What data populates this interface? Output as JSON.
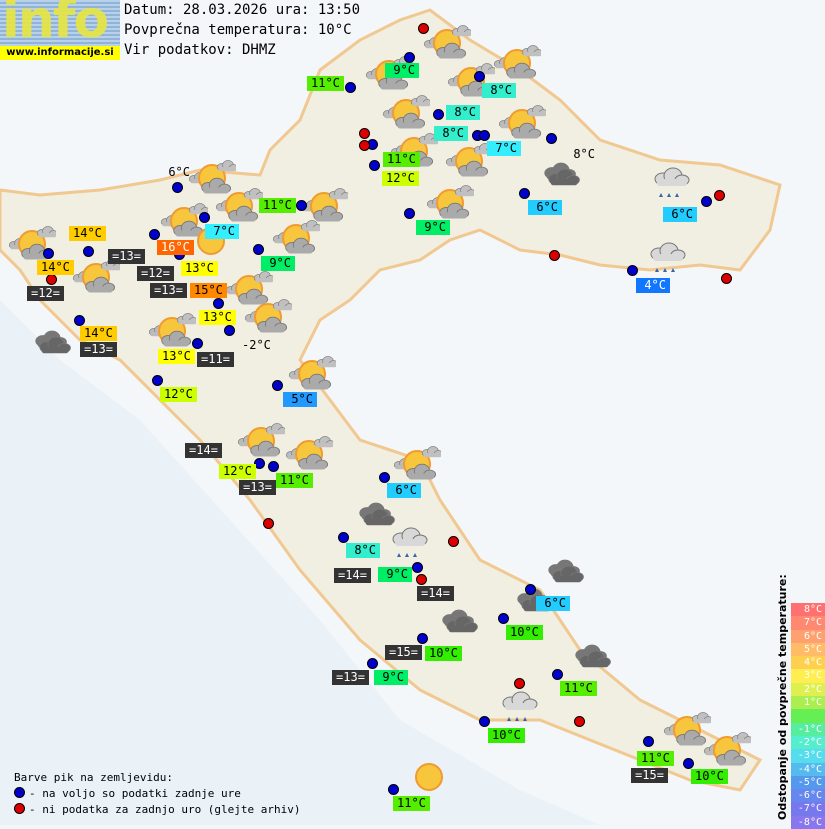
{
  "logo": {
    "text": "info",
    "url": "www.informacije.si"
  },
  "header": {
    "date_line": "Datum: 28.03.2026 ura: 13:50",
    "avg_temp_line": "Povprečna temperatura: 10°C",
    "source_line": "Vir podatkov: DHMZ"
  },
  "colors": {
    "station_ok": "#0000cc",
    "station_missing": "#dd0000",
    "sea_label_bg": "#333333"
  },
  "labels": [
    {
      "text": "11°C",
      "color": "#55ee00"
    },
    {
      "text": "9°C",
      "color": "#00ee66"
    },
    {
      "text": "8°C",
      "color": "#33eecc"
    },
    {
      "text": "8°C",
      "color": "#33eecc"
    },
    {
      "text": "8°C",
      "color": "#33eecc"
    },
    {
      "text": "7°C",
      "color": "#33eeff"
    },
    {
      "text": "8°C",
      "color": ""
    },
    {
      "text": "11°C",
      "color": "#55ee00"
    },
    {
      "text": "12°C",
      "color": "#ccff00"
    },
    {
      "text": "11°C",
      "color": "#55ee00"
    },
    {
      "text": "9°C",
      "color": "#00ee66"
    },
    {
      "text": "6°C",
      "color": "#22ccff"
    },
    {
      "text": "6°C",
      "color": "#22ccff"
    },
    {
      "text": "6°C",
      "color": ""
    },
    {
      "text": "14°C",
      "color": "#ffcc00"
    },
    {
      "text": "7°C",
      "color": "#33eeff"
    },
    {
      "text": "16°C",
      "color": "#ff6600"
    },
    {
      "text": "=13=",
      "color": "sea"
    },
    {
      "text": "9°C",
      "color": "#00ee66"
    },
    {
      "text": "14°C",
      "color": "#ffcc00"
    },
    {
      "text": "=12=",
      "color": "sea"
    },
    {
      "text": "13°C",
      "color": "#ffff00"
    },
    {
      "text": "15°C",
      "color": "#ff8800"
    },
    {
      "text": "=13=",
      "color": "sea"
    },
    {
      "text": "=12=",
      "color": "sea"
    },
    {
      "text": "13°C",
      "color": "#ffff00"
    },
    {
      "text": "14°C",
      "color": "#ffcc00"
    },
    {
      "text": "=13=",
      "color": "sea"
    },
    {
      "text": "-2°C",
      "color": ""
    },
    {
      "text": "13°C",
      "color": "#ffff00"
    },
    {
      "text": "=11=",
      "color": "sea"
    },
    {
      "text": "12°C",
      "color": "#ccff00"
    },
    {
      "text": "5°C",
      "color": "#2299ff"
    },
    {
      "text": "=14=",
      "color": "sea"
    },
    {
      "text": "12°C",
      "color": "#ccff00"
    },
    {
      "text": "11°C",
      "color": "#55ee00"
    },
    {
      "text": "=13=",
      "color": "sea"
    },
    {
      "text": "6°C",
      "color": "#22ccff"
    },
    {
      "text": "8°C",
      "color": "#33eecc"
    },
    {
      "text": "9°C",
      "color": "#00ee66"
    },
    {
      "text": "=14=",
      "color": "sea"
    },
    {
      "text": "=14=",
      "color": "sea"
    },
    {
      "text": "6°C",
      "color": "#22ccff"
    },
    {
      "text": "10°C",
      "color": "#33ee00"
    },
    {
      "text": "=15=",
      "color": "sea"
    },
    {
      "text": "10°C",
      "color": "#33ee00"
    },
    {
      "text": "=13=",
      "color": "sea"
    },
    {
      "text": "9°C",
      "color": "#00ee66"
    },
    {
      "text": "11°C",
      "color": "#55ee00"
    },
    {
      "text": "10°C",
      "color": "#33ee00"
    },
    {
      "text": "11°C",
      "color": "#55ee00"
    },
    {
      "text": "=15=",
      "color": "sea"
    },
    {
      "text": "10°C",
      "color": "#33ee00"
    },
    {
      "text": "11°C",
      "color": "#55ee00"
    },
    {
      "text": "4°C",
      "color": "#1177ff"
    }
  ],
  "icons": [
    "partly-cloudy",
    "partly-cloudy",
    "partly-cloudy",
    "partly-cloudy",
    "partly-cloudy",
    "partly-cloudy",
    "partly-cloudy",
    "partly-cloudy",
    "partly-cloudy",
    "partly-cloudy",
    "partly-cloudy",
    "partly-cloudy",
    "partly-cloudy",
    "partly-cloudy",
    "partly-cloudy",
    "partly-cloudy",
    "partly-cloudy",
    "partly-cloudy",
    "partly-cloudy",
    "partly-cloudy",
    "partly-cloudy",
    "partly-cloudy",
    "partly-cloudy",
    "partly-cloudy",
    "partly-cloudy",
    "sunny",
    "sunny",
    "overcast",
    "overcast",
    "overcast",
    "overcast",
    "overcast",
    "overcast",
    "overcast",
    "rain",
    "rain",
    "rain",
    "rain"
  ],
  "legend": {
    "title": "Barve pik na zemljevidu:",
    "ok": "- na voljo so podatki zadnje ure",
    "missing": "- ni podatka za zadnjo uro (glejte arhiv)"
  },
  "scale": {
    "title": "Odstopanje od povprečne temperature:",
    "steps": [
      {
        "text": "8°C",
        "color": "#ff7070"
      },
      {
        "text": "7°C",
        "color": "#ff8870"
      },
      {
        "text": "6°C",
        "color": "#ffa070"
      },
      {
        "text": "5°C",
        "color": "#ffbb66"
      },
      {
        "text": "4°C",
        "color": "#ffd050"
      },
      {
        "text": "3°C",
        "color": "#ffee50"
      },
      {
        "text": "2°C",
        "color": "#ddf050"
      },
      {
        "text": "1°C",
        "color": "#aaee50"
      },
      {
        "text": "",
        "color": "#66ee55"
      },
      {
        "text": "-1°C",
        "color": "#55eea0"
      },
      {
        "text": "-2°C",
        "color": "#55eecc"
      },
      {
        "text": "-3°C",
        "color": "#55ddee"
      },
      {
        "text": "-4°C",
        "color": "#55bbee"
      },
      {
        "text": "-5°C",
        "color": "#5599ee"
      },
      {
        "text": "-6°C",
        "color": "#6688ee"
      },
      {
        "text": "-7°C",
        "color": "#7777ee"
      },
      {
        "text": "-8°C",
        "color": "#8877ee"
      }
    ]
  }
}
